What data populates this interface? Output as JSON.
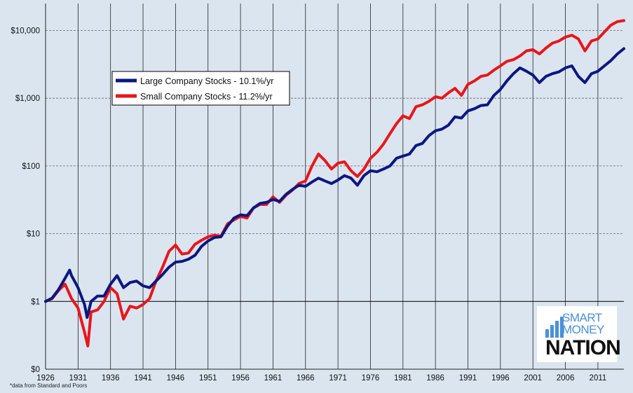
{
  "chart_data": {
    "type": "line",
    "scale": "log",
    "y_ticks": [
      {
        "value": 0.1,
        "label": "$0"
      },
      {
        "value": 1,
        "label": "$1"
      },
      {
        "value": 10,
        "label": "$10"
      },
      {
        "value": 100,
        "label": "$100"
      },
      {
        "value": 1000,
        "label": "$1,000"
      },
      {
        "value": 10000,
        "label": "$10,000"
      }
    ],
    "ylim": [
      0.1,
      25000
    ],
    "xlim": [
      1926,
      2015
    ],
    "x_ticks": [
      1926,
      1931,
      1936,
      1941,
      1946,
      1951,
      1956,
      1961,
      1966,
      1971,
      1976,
      1981,
      1986,
      1991,
      1996,
      2001,
      2006,
      2011
    ],
    "grid": {
      "vertical": true,
      "horizontal": true
    },
    "reference_line": 1,
    "legend_position": "top-left",
    "series": [
      {
        "name": "Large Company Stocks - 10.1%/yr",
        "color": "#0c1780",
        "points": [
          [
            1926,
            1.0
          ],
          [
            1927,
            1.12
          ],
          [
            1928,
            1.5
          ],
          [
            1929,
            2.2
          ],
          [
            1929.7,
            2.9
          ],
          [
            1930,
            2.4
          ],
          [
            1931,
            1.6
          ],
          [
            1932,
            0.9
          ],
          [
            1932.4,
            0.58
          ],
          [
            1933,
            1.0
          ],
          [
            1934,
            1.2
          ],
          [
            1935,
            1.2
          ],
          [
            1936,
            1.8
          ],
          [
            1937,
            2.4
          ],
          [
            1938,
            1.6
          ],
          [
            1939,
            1.9
          ],
          [
            1940,
            2.0
          ],
          [
            1941,
            1.7
          ],
          [
            1942,
            1.6
          ],
          [
            1943,
            2.0
          ],
          [
            1944,
            2.5
          ],
          [
            1945,
            3.2
          ],
          [
            1946,
            3.8
          ],
          [
            1947,
            3.9
          ],
          [
            1948,
            4.2
          ],
          [
            1949,
            4.8
          ],
          [
            1950,
            6.5
          ],
          [
            1951,
            7.8
          ],
          [
            1952,
            8.8
          ],
          [
            1953,
            9.0
          ],
          [
            1954,
            13.0
          ],
          [
            1955,
            17.0
          ],
          [
            1956,
            19.0
          ],
          [
            1957,
            18.5
          ],
          [
            1958,
            24.0
          ],
          [
            1959,
            28.0
          ],
          [
            1960,
            29.0
          ],
          [
            1961,
            32.0
          ],
          [
            1962,
            30.0
          ],
          [
            1963,
            38.0
          ],
          [
            1964,
            45.0
          ],
          [
            1965,
            52.0
          ],
          [
            1966,
            50.0
          ],
          [
            1967,
            58.0
          ],
          [
            1968,
            66.0
          ],
          [
            1969,
            60.0
          ],
          [
            1970,
            55.0
          ],
          [
            1971,
            62.0
          ],
          [
            1972,
            72.0
          ],
          [
            1973,
            66.0
          ],
          [
            1974,
            52.0
          ],
          [
            1975,
            72.0
          ],
          [
            1976,
            85.0
          ],
          [
            1977,
            82.0
          ],
          [
            1978,
            90.0
          ],
          [
            1979,
            100.0
          ],
          [
            1980,
            130.0
          ],
          [
            1981,
            140.0
          ],
          [
            1982,
            150.0
          ],
          [
            1983,
            200.0
          ],
          [
            1984,
            215.0
          ],
          [
            1985,
            280.0
          ],
          [
            1986,
            330.0
          ],
          [
            1987,
            350.0
          ],
          [
            1988,
            400.0
          ],
          [
            1989,
            530.0
          ],
          [
            1990,
            510.0
          ],
          [
            1991,
            650.0
          ],
          [
            1992,
            700.0
          ],
          [
            1993,
            780.0
          ],
          [
            1994,
            800.0
          ],
          [
            1995,
            1100.0
          ],
          [
            1996,
            1350.0
          ],
          [
            1997,
            1800.0
          ],
          [
            1998,
            2300.0
          ],
          [
            1999,
            2800.0
          ],
          [
            2000,
            2500.0
          ],
          [
            2001,
            2200.0
          ],
          [
            2002,
            1700.0
          ],
          [
            2003,
            2100.0
          ],
          [
            2004,
            2300.0
          ],
          [
            2005,
            2450.0
          ],
          [
            2006,
            2800.0
          ],
          [
            2007,
            3000.0
          ],
          [
            2008,
            2100.0
          ],
          [
            2009,
            1700.0
          ],
          [
            2010,
            2300.0
          ],
          [
            2011,
            2500.0
          ],
          [
            2012,
            3000.0
          ],
          [
            2013,
            3600.0
          ],
          [
            2014,
            4500.0
          ],
          [
            2015,
            5400.0
          ]
        ]
      },
      {
        "name": "Small Company Stocks - 11.2%/yr",
        "color": "#e8161b",
        "points": [
          [
            1926,
            1.0
          ],
          [
            1927,
            1.1
          ],
          [
            1928,
            1.45
          ],
          [
            1929,
            1.8
          ],
          [
            1930,
            1.1
          ],
          [
            1931,
            0.8
          ],
          [
            1932,
            0.35
          ],
          [
            1932.5,
            0.22
          ],
          [
            1933,
            0.7
          ],
          [
            1934,
            0.75
          ],
          [
            1935,
            1.0
          ],
          [
            1936,
            1.6
          ],
          [
            1937,
            1.3
          ],
          [
            1938,
            0.55
          ],
          [
            1939,
            0.85
          ],
          [
            1940,
            0.8
          ],
          [
            1941,
            0.9
          ],
          [
            1942,
            1.1
          ],
          [
            1943,
            2.0
          ],
          [
            1944,
            3.2
          ],
          [
            1945,
            5.5
          ],
          [
            1946,
            6.8
          ],
          [
            1947,
            5.0
          ],
          [
            1948,
            5.2
          ],
          [
            1949,
            7.0
          ],
          [
            1950,
            8.0
          ],
          [
            1951,
            9.0
          ],
          [
            1952,
            9.5
          ],
          [
            1953,
            9.2
          ],
          [
            1954,
            14.0
          ],
          [
            1955,
            16.0
          ],
          [
            1956,
            18.0
          ],
          [
            1957,
            17.0
          ],
          [
            1958,
            24.0
          ],
          [
            1959,
            27.0
          ],
          [
            1960,
            27.0
          ],
          [
            1961,
            35.0
          ],
          [
            1962,
            29.0
          ],
          [
            1963,
            37.0
          ],
          [
            1964,
            44.0
          ],
          [
            1965,
            55.0
          ],
          [
            1966,
            60.0
          ],
          [
            1967,
            100.0
          ],
          [
            1968,
            150.0
          ],
          [
            1969,
            120.0
          ],
          [
            1970,
            90.0
          ],
          [
            1971,
            110.0
          ],
          [
            1972,
            115.0
          ],
          [
            1973,
            85.0
          ],
          [
            1974,
            70.0
          ],
          [
            1975,
            90.0
          ],
          [
            1976,
            130.0
          ],
          [
            1977,
            160.0
          ],
          [
            1978,
            210.0
          ],
          [
            1979,
            300.0
          ],
          [
            1980,
            420.0
          ],
          [
            1981,
            550.0
          ],
          [
            1982,
            500.0
          ],
          [
            1983,
            750.0
          ],
          [
            1984,
            800.0
          ],
          [
            1985,
            900.0
          ],
          [
            1986,
            1050.0
          ],
          [
            1987,
            1000.0
          ],
          [
            1988,
            1200.0
          ],
          [
            1989,
            1400.0
          ],
          [
            1990,
            1100.0
          ],
          [
            1991,
            1600.0
          ],
          [
            1992,
            1800.0
          ],
          [
            1993,
            2100.0
          ],
          [
            1994,
            2200.0
          ],
          [
            1995,
            2600.0
          ],
          [
            1996,
            3000.0
          ],
          [
            1997,
            3500.0
          ],
          [
            1998,
            3700.0
          ],
          [
            1999,
            4200.0
          ],
          [
            2000,
            5000.0
          ],
          [
            2001,
            5200.0
          ],
          [
            2002,
            4500.0
          ],
          [
            2003,
            5500.0
          ],
          [
            2004,
            6500.0
          ],
          [
            2005,
            7000.0
          ],
          [
            2006,
            8000.0
          ],
          [
            2007,
            8500.0
          ],
          [
            2008,
            7500.0
          ],
          [
            2009,
            5000.0
          ],
          [
            2010,
            7000.0
          ],
          [
            2011,
            7500.0
          ],
          [
            2012,
            9500.0
          ],
          [
            2013,
            12000.0
          ],
          [
            2014,
            13500.0
          ],
          [
            2015,
            14000.0
          ]
        ]
      }
    ]
  },
  "footnote": "*data from Standard and Poors",
  "logo": {
    "line1": "SMART",
    "line2": "MONEY",
    "line3": "NATION"
  }
}
